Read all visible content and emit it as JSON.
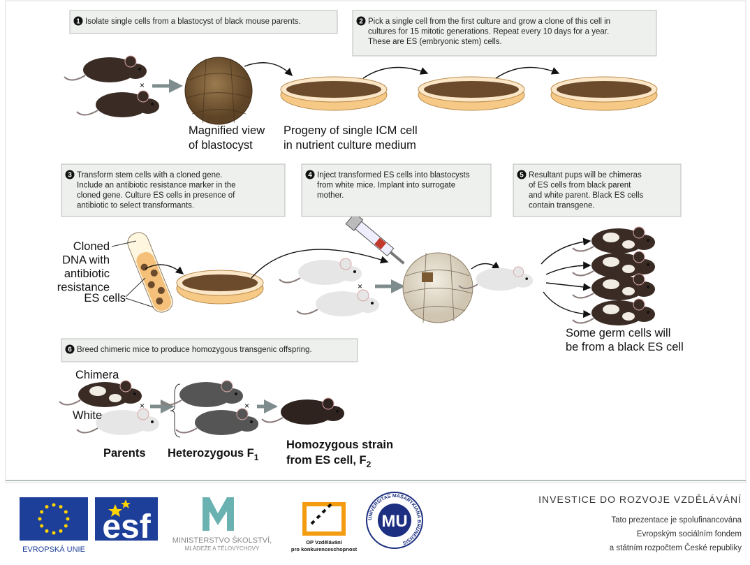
{
  "steps": [
    {
      "number": "1",
      "lines": [
        "Isolate single cells from a blastocyst of black mouse parents."
      ]
    },
    {
      "number": "2",
      "lines": [
        "Pick a single cell from the first culture and grow a clone of this cell in",
        "cultures for 15 mitotic generations. Repeat every 10 days for a year.",
        "These are ES (embryonic stem) cells."
      ]
    },
    {
      "number": "3",
      "lines": [
        "Transform stem cells with a cloned gene.",
        "Include an antibiotic resistance marker in the",
        "cloned gene. Culture ES cells in presence of",
        "antibiotic to select transformants."
      ]
    },
    {
      "number": "4",
      "lines": [
        "Inject transformed ES cells into blastocysts",
        "from white mice. Implant into surrogate",
        "mother."
      ]
    },
    {
      "number": "5",
      "lines": [
        "Resultant pups will be chimeras",
        "of ES cells from black parent",
        "and white parent. Black ES cells",
        "contain transgene."
      ]
    },
    {
      "number": "6",
      "lines": [
        "Breed chimeric mice to produce homozygous transgenic offspring."
      ]
    }
  ],
  "labels": {
    "blastocyst": [
      "Magnified view",
      "of blastocyst"
    ],
    "progeny": [
      "Progeny of single ICM cell",
      "in nutrient culture medium"
    ],
    "cloned_dna": [
      "Cloned",
      "DNA with",
      "antibiotic",
      "resistance"
    ],
    "es_cells": "ES cells",
    "germ_cells": [
      "Some germ cells will",
      "be from a black ES cell"
    ],
    "chimera": "Chimera",
    "white": "White",
    "parents": "Parents",
    "heterozygous": {
      "text": "Heterozygous F",
      "subscript": "1"
    },
    "homozygous": {
      "line1": "Homozygous strain",
      "text": "from ES cell, F",
      "subscript": "2"
    },
    "cross": "×"
  },
  "footer": {
    "eu": "EVROPSKÁ UNIE",
    "esf": "esf",
    "msmt": "MŠMT",
    "msmt_lines": [
      "MINISTERSTVO ŠKOLSTVÍ,",
      "MLÁDEŽE A TĚLOVÝCHOVY"
    ],
    "op_lines": [
      "OP Vzdělávání",
      "pro konkurenceschopnost"
    ],
    "mu_ring": "UNIVERSITAS MASARYKIANA BRUNENSIS",
    "mu": "MU",
    "heading": "INVESTICE DO ROZVOJE VZDĚLÁVÁNÍ",
    "lines": [
      "Tato prezentace je spolufinancována",
      "Evropským sociálním fondem",
      "a státním rozpočtem České republiky"
    ]
  }
}
